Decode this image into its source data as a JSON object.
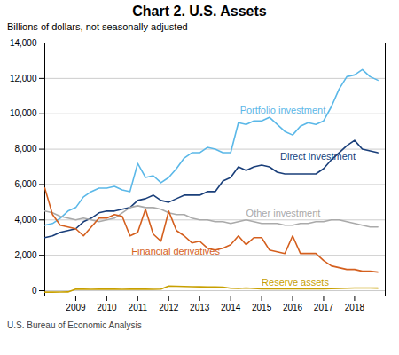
{
  "chart_data": {
    "type": "line",
    "title": "Chart 2. U.S. Assets",
    "subtitle": "Billions of dollars, not seasonally adjusted",
    "source": "U.S. Bureau of Economic Analysis",
    "x": [
      2008.0,
      2008.25,
      2008.5,
      2008.75,
      2009.0,
      2009.25,
      2009.5,
      2009.75,
      2010.0,
      2010.25,
      2010.5,
      2010.75,
      2011.0,
      2011.25,
      2011.5,
      2011.75,
      2012.0,
      2012.25,
      2012.5,
      2012.75,
      2013.0,
      2013.25,
      2013.5,
      2013.75,
      2014.0,
      2014.25,
      2014.5,
      2014.75,
      2015.0,
      2015.25,
      2015.5,
      2015.75,
      2016.0,
      2016.25,
      2016.5,
      2016.75,
      2017.0,
      2017.25,
      2017.5,
      2017.75,
      2018.0,
      2018.25,
      2018.5,
      2018.75
    ],
    "xlim": [
      2008.0,
      2018.99
    ],
    "xticks": [
      2009,
      2010,
      2011,
      2012,
      2013,
      2014,
      2015,
      2016,
      2017,
      2018
    ],
    "ylim": [
      -300,
      14000
    ],
    "yticks": [
      0,
      {
        "value": 2000,
        "label": "2,000"
      },
      {
        "value": 4000,
        "label": "4,000"
      },
      {
        "value": 6000,
        "label": "6,000"
      },
      {
        "value": 8000,
        "label": "8,000"
      },
      {
        "value": 10000,
        "label": "10,000"
      },
      {
        "value": 12000,
        "label": "12,000"
      },
      {
        "value": 14000,
        "label": "14,000"
      }
    ],
    "grid": "y",
    "series": [
      {
        "name": "Portfolio investment",
        "color": "#5bb8e8",
        "values": [
          3700,
          3800,
          4100,
          4500,
          4700,
          5300,
          5600,
          5800,
          5800,
          5900,
          5700,
          5600,
          7200,
          6400,
          6500,
          6100,
          6400,
          6900,
          7500,
          7800,
          7800,
          8100,
          8000,
          7800,
          7800,
          9500,
          9400,
          9600,
          9600,
          9800,
          9400,
          9000,
          8800,
          9300,
          9500,
          9400,
          9600,
          10400,
          11400,
          12100,
          12200,
          12500,
          12100,
          11900
        ]
      },
      {
        "name": "Direct investment",
        "color": "#1a3f7a",
        "values": [
          3000,
          3100,
          3300,
          3400,
          3500,
          3900,
          4100,
          4400,
          4500,
          4500,
          4600,
          4700,
          5100,
          5200,
          5400,
          5100,
          5000,
          5200,
          5400,
          5400,
          5400,
          5600,
          5600,
          6200,
          6400,
          7000,
          6800,
          7000,
          7100,
          7000,
          6700,
          6600,
          6600,
          6600,
          6600,
          6600,
          6900,
          7400,
          7800,
          8200,
          8500,
          8000,
          7900,
          7800
        ]
      },
      {
        "name": "Other investment",
        "color": "#aaaaaa",
        "values": [
          4500,
          4400,
          4200,
          4100,
          4000,
          4100,
          4000,
          3900,
          4000,
          4100,
          4400,
          4700,
          4800,
          4700,
          4700,
          4600,
          4400,
          4300,
          4300,
          4100,
          4000,
          4000,
          3900,
          3900,
          3800,
          3900,
          4000,
          3900,
          3800,
          3800,
          3800,
          3700,
          3700,
          3800,
          3800,
          3900,
          3900,
          4000,
          4000,
          3900,
          3800,
          3700,
          3600,
          3600
        ]
      },
      {
        "name": "Financial derivatives",
        "color": "#d45f1e",
        "values": [
          5800,
          4300,
          3700,
          3600,
          3500,
          3100,
          3600,
          4100,
          4100,
          4300,
          4200,
          3100,
          3300,
          4600,
          3200,
          2800,
          4500,
          3400,
          3100,
          2700,
          2800,
          2400,
          2300,
          2400,
          2600,
          3100,
          2600,
          3000,
          3000,
          2300,
          2200,
          2100,
          3100,
          2100,
          2100,
          2100,
          1700,
          1400,
          1300,
          1200,
          1200,
          1100,
          1100,
          1050
        ]
      },
      {
        "name": "Reserve assets",
        "color": "#c8a000",
        "values": [
          -80,
          -80,
          -75,
          -70,
          90,
          85,
          80,
          85,
          90,
          85,
          80,
          85,
          90,
          85,
          80,
          90,
          260,
          250,
          240,
          230,
          220,
          215,
          210,
          200,
          140,
          130,
          150,
          130,
          100,
          100,
          100,
          100,
          110,
          115,
          105,
          100,
          110,
          120,
          130,
          140,
          150,
          150,
          150,
          145
        ]
      }
    ],
    "annotations": [
      {
        "text": "Portfolio investment",
        "x": 2014.3,
        "y": 10200,
        "color": "#5bb8e8"
      },
      {
        "text": "Direct investment",
        "x": 2015.6,
        "y": 7600,
        "color": "#1a3f7a"
      },
      {
        "text": "Other investment",
        "x": 2014.5,
        "y": 4350,
        "color": "#aaaaaa"
      },
      {
        "text": "Financial derivatives",
        "x": 2010.8,
        "y": 2200,
        "color": "#d45f1e"
      },
      {
        "text": "Reserve assets",
        "x": 2015.0,
        "y": 450,
        "color": "#c8a000"
      }
    ]
  }
}
